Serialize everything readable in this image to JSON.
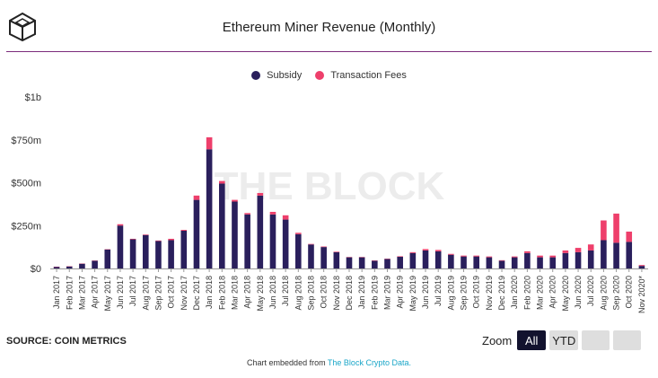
{
  "header": {
    "title": "Ethereum Miner Revenue (Monthly)",
    "logo_icon": "cube-logo-icon"
  },
  "legend": {
    "items": [
      {
        "label": "Subsidy",
        "color": "#2a1f5c"
      },
      {
        "label": "Transaction Fees",
        "color": "#ee3f6b"
      }
    ]
  },
  "watermark": "THE BLOCK",
  "chart_data": {
    "type": "bar",
    "stacked": true,
    "title": "Ethereum Miner Revenue (Monthly)",
    "xlabel": "",
    "ylabel": "",
    "ylim": [
      0,
      1000000000
    ],
    "yticks": [
      {
        "value": 0,
        "label": "$0"
      },
      {
        "value": 250000000,
        "label": "$250m"
      },
      {
        "value": 500000000,
        "label": "$500m"
      },
      {
        "value": 750000000,
        "label": "$750m"
      },
      {
        "value": 1000000000,
        "label": "$1b"
      }
    ],
    "grid": false,
    "legend_position": "top",
    "categories": [
      "Jan 2017",
      "Feb 2017",
      "Mar 2017",
      "Apr 2017",
      "May 2017",
      "Jun 2017",
      "Jul 2017",
      "Aug 2017",
      "Sep 2017",
      "Oct 2017",
      "Nov 2017",
      "Dec 2017",
      "Jan 2018",
      "Feb 2018",
      "Mar 2018",
      "Apr 2018",
      "May 2018",
      "Jun 2018",
      "Jul 2018",
      "Aug 2018",
      "Sep 2018",
      "Oct 2018",
      "Nov 2018",
      "Dec 2018",
      "Jan 2019",
      "Feb 2019",
      "Mar 2019",
      "Apr 2019",
      "May 2019",
      "Jun 2019",
      "Jul 2019",
      "Aug 2019",
      "Sep 2019",
      "Oct 2019",
      "Nov 2019",
      "Dec 2019",
      "Jan 2020",
      "Feb 2020",
      "Mar 2020",
      "Apr 2020",
      "May 2020",
      "Jun 2020",
      "Jul 2020",
      "Aug 2020",
      "Sep 2020",
      "Oct 2020",
      "Nov 2020*"
    ],
    "series": [
      {
        "name": "Subsidy",
        "color": "#2a1f5c",
        "values": [
          10000000,
          12000000,
          28000000,
          45000000,
          110000000,
          250000000,
          170000000,
          195000000,
          160000000,
          165000000,
          220000000,
          400000000,
          695000000,
          495000000,
          390000000,
          315000000,
          425000000,
          315000000,
          285000000,
          200000000,
          140000000,
          125000000,
          95000000,
          65000000,
          65000000,
          45000000,
          55000000,
          68000000,
          90000000,
          105000000,
          100000000,
          80000000,
          70000000,
          70000000,
          65000000,
          45000000,
          65000000,
          90000000,
          65000000,
          65000000,
          90000000,
          95000000,
          105000000,
          165000000,
          150000000,
          155000000,
          15000000
        ]
      },
      {
        "name": "Transaction Fees",
        "color": "#ee3f6b",
        "values": [
          500000,
          500000,
          1000000,
          1000000,
          2000000,
          8000000,
          3000000,
          3000000,
          3000000,
          8000000,
          5000000,
          25000000,
          70000000,
          15000000,
          10000000,
          8000000,
          15000000,
          15000000,
          25000000,
          8000000,
          3000000,
          3000000,
          3000000,
          2000000,
          2000000,
          2000000,
          2000000,
          3000000,
          5000000,
          8000000,
          8000000,
          5000000,
          5000000,
          5000000,
          5000000,
          3000000,
          5000000,
          10000000,
          10000000,
          10000000,
          15000000,
          25000000,
          35000000,
          115000000,
          170000000,
          60000000,
          5000000
        ]
      }
    ]
  },
  "source": "SOURCE: COIN METRICS",
  "zoom": {
    "label": "Zoom",
    "buttons": [
      "All",
      "YTD"
    ]
  },
  "footer": {
    "text": "Chart embedded from ",
    "link": "The Block Crypto Data."
  }
}
